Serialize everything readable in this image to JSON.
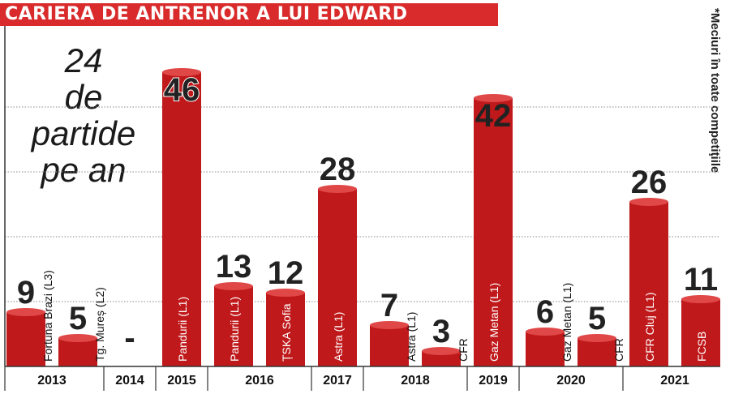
{
  "title": "CARIERA DE ANTRENOR A LUI EDWARD",
  "average": {
    "line1": "24",
    "line2": "de",
    "line3": "partide",
    "line4": "pe an"
  },
  "footnote": "*Meciuri în toate competiţiile",
  "colors": {
    "bar": "#c0191b",
    "bar_top": "#e04848",
    "title_bg": "#d92b2b",
    "grid": "#888888",
    "axis_band": "#ffffff"
  },
  "chart_data": {
    "type": "bar",
    "title": "CARIERA DE ANTRENOR A LUI EDWARD",
    "ylabel": "",
    "xlabel": "",
    "ylim": [
      0,
      50
    ],
    "grid": true,
    "years": [
      {
        "label": "2013",
        "bars": [
          0,
          1
        ]
      },
      {
        "label": "2014",
        "bars": [
          2
        ]
      },
      {
        "label": "2015",
        "bars": [
          3
        ]
      },
      {
        "label": "2016",
        "bars": [
          4,
          5
        ]
      },
      {
        "label": "2017",
        "bars": [
          6
        ]
      },
      {
        "label": "2018",
        "bars": [
          7,
          8
        ]
      },
      {
        "label": "2019",
        "bars": [
          9
        ]
      },
      {
        "label": "2020",
        "bars": [
          10,
          11
        ]
      },
      {
        "label": "2021",
        "bars": [
          12,
          13
        ]
      }
    ],
    "bars": [
      {
        "club": "Fortuna Brazi (L3)",
        "year": "2013",
        "value": 9,
        "display": "9"
      },
      {
        "club": "Tg. Mureș (L2)",
        "year": "2013",
        "value": 5,
        "display": "5"
      },
      {
        "club": "",
        "year": "2014",
        "value": 0,
        "display": "-"
      },
      {
        "club": "Pandurii (L1)",
        "year": "2015",
        "value": 46,
        "display": "46"
      },
      {
        "club": "Pandurii (L1)",
        "year": "2016",
        "value": 13,
        "display": "13"
      },
      {
        "club": "ȚSKA Sofia",
        "year": "2016",
        "value": 12,
        "display": "12"
      },
      {
        "club": "Astra (L1)",
        "year": "2017",
        "value": 28,
        "display": "28"
      },
      {
        "club": "Astra (L1)",
        "year": "2018",
        "value": 7,
        "display": "7"
      },
      {
        "club": "CFR",
        "year": "2018",
        "value": 3,
        "display": "3"
      },
      {
        "club": "Gaz Metan (L1)",
        "year": "2019",
        "value": 42,
        "display": "42"
      },
      {
        "club": "Gaz Metan (L1)",
        "year": "2020",
        "value": 6,
        "display": "6"
      },
      {
        "club": "CFR",
        "year": "2020",
        "value": 5,
        "display": "5"
      },
      {
        "club": "CFR Cluj (L1)",
        "year": "2021",
        "value": 26,
        "display": "26"
      },
      {
        "club": "FCSB",
        "year": "2021",
        "value": 11,
        "display": "11"
      }
    ]
  }
}
